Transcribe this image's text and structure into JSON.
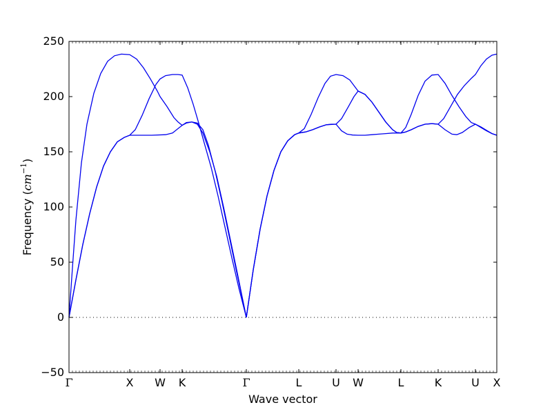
{
  "chart_data": {
    "type": "line",
    "xlabel": "Wave vector",
    "ylabel": "Frequency",
    "ylabel_unit": "cm",
    "ylabel_unit_exp": "−1",
    "ylim": [
      -50,
      250
    ],
    "yticks": [
      -50,
      0,
      50,
      100,
      150,
      200,
      250
    ],
    "xlim": [
      0,
      620
    ],
    "zero_line": true,
    "line_color": "#0000ee",
    "kpoints": [
      {
        "label": "Γ",
        "x": 0
      },
      {
        "label": "X",
        "x": 88
      },
      {
        "label": "W",
        "x": 132
      },
      {
        "label": "K",
        "x": 164
      },
      {
        "label": "Γ",
        "x": 257
      },
      {
        "label": "L",
        "x": 333
      },
      {
        "label": "U",
        "x": 387
      },
      {
        "label": "W",
        "x": 419
      },
      {
        "label": "L",
        "x": 481
      },
      {
        "label": "K",
        "x": 535
      },
      {
        "label": "U",
        "x": 589
      },
      {
        "label": "X",
        "x": 620
      }
    ],
    "series": [
      {
        "points": [
          [
            0,
            0
          ],
          [
            10,
            34
          ],
          [
            20,
            66
          ],
          [
            30,
            94
          ],
          [
            40,
            118
          ],
          [
            50,
            137
          ],
          [
            60,
            150
          ],
          [
            70,
            159
          ],
          [
            80,
            163
          ],
          [
            88,
            165
          ],
          [
            100,
            165
          ],
          [
            120,
            165
          ],
          [
            140,
            165.5
          ],
          [
            150,
            167
          ],
          [
            158,
            171
          ],
          [
            164,
            174
          ],
          [
            170,
            176.5
          ],
          [
            178,
            177
          ],
          [
            186,
            175
          ],
          [
            194,
            167
          ],
          [
            204,
            150
          ],
          [
            214,
            128
          ],
          [
            224,
            100
          ],
          [
            234,
            70
          ],
          [
            244,
            40
          ],
          [
            257,
            0
          ]
        ]
      },
      {
        "points": [
          [
            0,
            0
          ],
          [
            10,
            34
          ],
          [
            20,
            66
          ],
          [
            30,
            94
          ],
          [
            40,
            118
          ],
          [
            50,
            137
          ],
          [
            60,
            150
          ],
          [
            70,
            159
          ],
          [
            80,
            163
          ],
          [
            88,
            165
          ],
          [
            96,
            170
          ],
          [
            106,
            183
          ],
          [
            116,
            198
          ],
          [
            126,
            211
          ],
          [
            132,
            216
          ],
          [
            140,
            219
          ],
          [
            150,
            220
          ],
          [
            158,
            220
          ],
          [
            164,
            219.5
          ],
          [
            172,
            208
          ],
          [
            180,
            193
          ],
          [
            188,
            176
          ],
          [
            196,
            158
          ],
          [
            206,
            136
          ],
          [
            216,
            110
          ],
          [
            226,
            82
          ],
          [
            236,
            54
          ],
          [
            246,
            27
          ],
          [
            257,
            0
          ]
        ]
      },
      {
        "points": [
          [
            0,
            0
          ],
          [
            5,
            45
          ],
          [
            10,
            88
          ],
          [
            18,
            140
          ],
          [
            26,
            175
          ],
          [
            36,
            203
          ],
          [
            46,
            221
          ],
          [
            56,
            232
          ],
          [
            66,
            237
          ],
          [
            76,
            238.5
          ],
          [
            88,
            238
          ],
          [
            98,
            234
          ],
          [
            108,
            226
          ],
          [
            118,
            216
          ],
          [
            128,
            205
          ],
          [
            132,
            200
          ],
          [
            142,
            191
          ],
          [
            152,
            181
          ],
          [
            158,
            177
          ],
          [
            164,
            174
          ],
          [
            170,
            176
          ],
          [
            178,
            177
          ],
          [
            186,
            176
          ],
          [
            194,
            170
          ],
          [
            202,
            156
          ],
          [
            212,
            132
          ],
          [
            222,
            104
          ],
          [
            232,
            74
          ],
          [
            242,
            44
          ],
          [
            257,
            0
          ]
        ]
      },
      {
        "points": [
          [
            257,
            0
          ],
          [
            267,
            43
          ],
          [
            277,
            80
          ],
          [
            287,
            110
          ],
          [
            297,
            133
          ],
          [
            307,
            150
          ],
          [
            317,
            160
          ],
          [
            327,
            165.5
          ],
          [
            333,
            167
          ],
          [
            343,
            168
          ],
          [
            353,
            170
          ],
          [
            363,
            172.5
          ],
          [
            373,
            174.5
          ],
          [
            380,
            175
          ],
          [
            387,
            175
          ],
          [
            395,
            180
          ],
          [
            405,
            191
          ],
          [
            413,
            200
          ],
          [
            419,
            205
          ],
          [
            429,
            202
          ],
          [
            439,
            195
          ],
          [
            449,
            186
          ],
          [
            459,
            177
          ],
          [
            469,
            170
          ],
          [
            475,
            167.5
          ],
          [
            481,
            167
          ],
          [
            488,
            168
          ],
          [
            496,
            170
          ],
          [
            506,
            173
          ],
          [
            516,
            175
          ],
          [
            526,
            175.5
          ],
          [
            535,
            175
          ],
          [
            545,
            170
          ],
          [
            555,
            166
          ],
          [
            562,
            165.5
          ],
          [
            570,
            167.5
          ],
          [
            580,
            172
          ],
          [
            589,
            175
          ],
          [
            597,
            172
          ],
          [
            605,
            169
          ],
          [
            613,
            166.5
          ],
          [
            620,
            165
          ]
        ]
      },
      {
        "points": [
          [
            257,
            0
          ],
          [
            267,
            43
          ],
          [
            277,
            80
          ],
          [
            287,
            110
          ],
          [
            297,
            133
          ],
          [
            307,
            150
          ],
          [
            317,
            160
          ],
          [
            327,
            165.5
          ],
          [
            333,
            167
          ],
          [
            343,
            168
          ],
          [
            353,
            170
          ],
          [
            363,
            172.5
          ],
          [
            373,
            174.5
          ],
          [
            387,
            175
          ],
          [
            395,
            169
          ],
          [
            403,
            166
          ],
          [
            411,
            165.2
          ],
          [
            419,
            165
          ],
          [
            429,
            165
          ],
          [
            439,
            165.5
          ],
          [
            449,
            166
          ],
          [
            459,
            166.5
          ],
          [
            469,
            167
          ],
          [
            481,
            167
          ],
          [
            488,
            172
          ],
          [
            496,
            184
          ],
          [
            506,
            201
          ],
          [
            516,
            214
          ],
          [
            526,
            219.5
          ],
          [
            535,
            220
          ],
          [
            545,
            212
          ],
          [
            555,
            201
          ],
          [
            565,
            191
          ],
          [
            575,
            182
          ],
          [
            583,
            176.5
          ],
          [
            589,
            175
          ],
          [
            597,
            172.5
          ],
          [
            605,
            169.5
          ],
          [
            613,
            166.5
          ],
          [
            620,
            165
          ]
        ]
      },
      {
        "points": [
          [
            257,
            0
          ],
          [
            267,
            43
          ],
          [
            277,
            80
          ],
          [
            287,
            110
          ],
          [
            297,
            133
          ],
          [
            307,
            150
          ],
          [
            317,
            160
          ],
          [
            327,
            165.5
          ],
          [
            333,
            167
          ],
          [
            341,
            171
          ],
          [
            351,
            184
          ],
          [
            361,
            199
          ],
          [
            371,
            212
          ],
          [
            379,
            218.5
          ],
          [
            387,
            220
          ],
          [
            397,
            219
          ],
          [
            407,
            215
          ],
          [
            413,
            210
          ],
          [
            419,
            205
          ],
          [
            429,
            202
          ],
          [
            439,
            195
          ],
          [
            449,
            186
          ],
          [
            459,
            177
          ],
          [
            469,
            170
          ],
          [
            475,
            167.5
          ],
          [
            481,
            167
          ],
          [
            488,
            168
          ],
          [
            496,
            170
          ],
          [
            506,
            173
          ],
          [
            516,
            175
          ],
          [
            526,
            175.5
          ],
          [
            535,
            175
          ],
          [
            543,
            180
          ],
          [
            553,
            191
          ],
          [
            563,
            202
          ],
          [
            573,
            210
          ],
          [
            583,
            216.5
          ],
          [
            589,
            220
          ],
          [
            597,
            228
          ],
          [
            605,
            234
          ],
          [
            613,
            237.5
          ],
          [
            620,
            238.5
          ]
        ]
      }
    ]
  }
}
